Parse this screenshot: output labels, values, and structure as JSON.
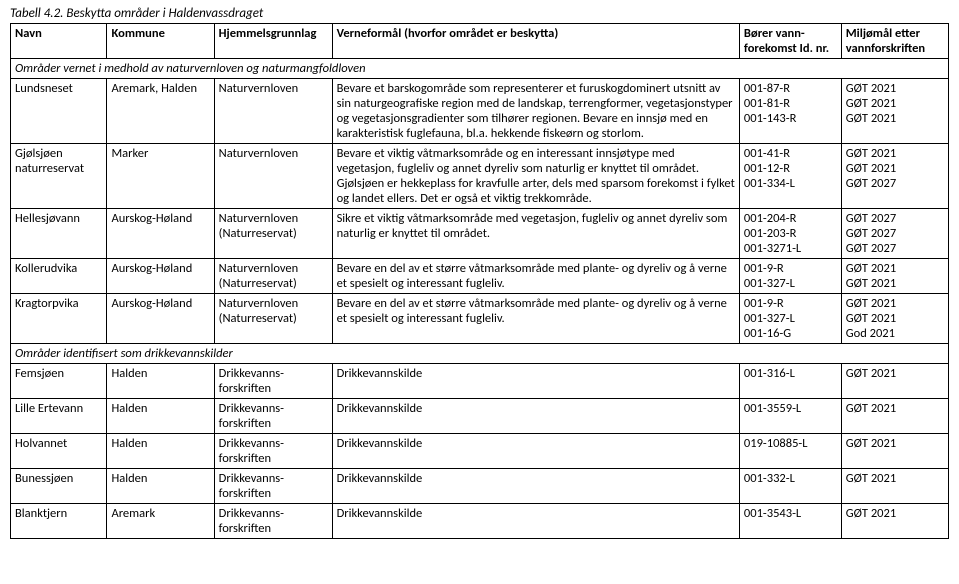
{
  "caption": "Tabell 4.2. Beskytta områder i Haldenvassdraget",
  "headers": {
    "navn": "Navn",
    "kommune": "Kommune",
    "hjemmel": "Hjemmelsgrunnlag",
    "verneformal": "Verneformål (hvorfor området er beskytta)",
    "borer": "Bører vann-forekomst Id. nr.",
    "miljomal": "Miljømål etter vannforskriften"
  },
  "sections": [
    {
      "title": "Områder vernet i medhold av naturvernloven og naturmangfoldloven",
      "rows": [
        {
          "navn": "Lundsneset",
          "kommune": "Aremark, Halden",
          "hjemmel": "Naturvernloven",
          "verneformal": "Bevare et barskogområde som representerer et furuskogdominert utsnitt av sin naturgeografiske region med de landskap, terrengformer, vegetasjonstyper og vegetasjonsgradienter som tilhører regionen. Bevare en innsjø med en karakteristisk fuglefauna, bl.a. hekkende fiskeørn og storlom.",
          "borer": [
            "001-87-R",
            "001-81-R",
            "001-143-R"
          ],
          "miljomal": [
            "GØT 2021",
            "GØT 2021",
            "GØT 2021"
          ]
        },
        {
          "navn": "Gjølsjøen naturreservat",
          "kommune": "Marker",
          "hjemmel": "Naturvernloven",
          "verneformal": "Bevare et viktig våtmarksområde og en interessant innsjøtype med vegetasjon, fugleliv og annet dyreliv som naturlig er knyttet til området. Gjølsjøen er hekkeplass for kravfulle arter, dels med sparsom forekomst i fylket og landet ellers. Det er også et viktig trekkområde.",
          "borer": [
            "001-41-R",
            "001-12-R",
            "001-334-L"
          ],
          "miljomal": [
            "GØT 2021",
            "GØT 2021",
            "GØT 2027"
          ]
        },
        {
          "navn": "Hellesjøvann",
          "kommune": "Aurskog-Høland",
          "hjemmel": "Naturvernloven (Naturreservat)",
          "verneformal": "Sikre et viktig våtmarksområde med vegetasjon, fugleliv og annet dyreliv som naturlig er knyttet til området.",
          "borer": [
            "001-204-R",
            "001-203-R",
            "001-3271-L"
          ],
          "miljomal": [
            "GØT 2027",
            "GØT 2027",
            "GØT 2027"
          ]
        },
        {
          "navn": "Kollerudvika",
          "kommune": "Aurskog-Høland",
          "hjemmel": "Naturvernloven (Naturreservat)",
          "verneformal": "Bevare en del av et større våtmarksområde med plante- og dyreliv og å verne et spesielt og interessant fugleliv.",
          "borer": [
            "001-9-R",
            "001-327-L"
          ],
          "miljomal": [
            "GØT 2021",
            "GØT 2021"
          ]
        },
        {
          "navn": "Kragtorpvika",
          "kommune": "Aurskog-Høland",
          "hjemmel": "Naturvernloven (Naturreservat)",
          "verneformal": "Bevare en del av et større våtmarksområde med plante- og dyreliv og å verne et spesielt og interessant fugleliv.",
          "borer": [
            "001-9-R",
            "001-327-L",
            "001-16-G"
          ],
          "miljomal": [
            "GØT 2021",
            "GØT 2021",
            "God 2021"
          ]
        }
      ]
    },
    {
      "title": "Områder identifisert som drikkevannskilder",
      "rows": [
        {
          "navn": "Femsjøen",
          "kommune": "Halden",
          "hjemmel": "Drikkevanns-forskriften",
          "verneformal": "Drikkevannskilde",
          "borer": [
            "001-316-L"
          ],
          "miljomal": [
            "GØT 2021"
          ]
        },
        {
          "navn": "Lille Ertevann",
          "kommune": "Halden",
          "hjemmel": "Drikkevanns-forskriften",
          "verneformal": "Drikkevannskilde",
          "borer": [
            "001-3559-L"
          ],
          "miljomal": [
            "GØT 2021"
          ]
        },
        {
          "navn": "Holvannet",
          "kommune": "Halden",
          "hjemmel": "Drikkevanns-forskriften",
          "verneformal": "Drikkevannskilde",
          "borer": [
            "019-10885-L"
          ],
          "miljomal": [
            "GØT 2021"
          ]
        },
        {
          "navn": "Bunessjøen",
          "kommune": "Halden",
          "hjemmel": "Drikkevanns-forskriften",
          "verneformal": "Drikkevannskilde",
          "borer": [
            "001-332-L"
          ],
          "miljomal": [
            "GØT 2021"
          ]
        },
        {
          "navn": "Blanktjern",
          "kommune": "Aremark",
          "hjemmel": "Drikkevanns-forskriften",
          "verneformal": "Drikkevannskilde",
          "borer": [
            "001-3543-L"
          ],
          "miljomal": [
            "GØT 2021"
          ]
        }
      ]
    }
  ]
}
